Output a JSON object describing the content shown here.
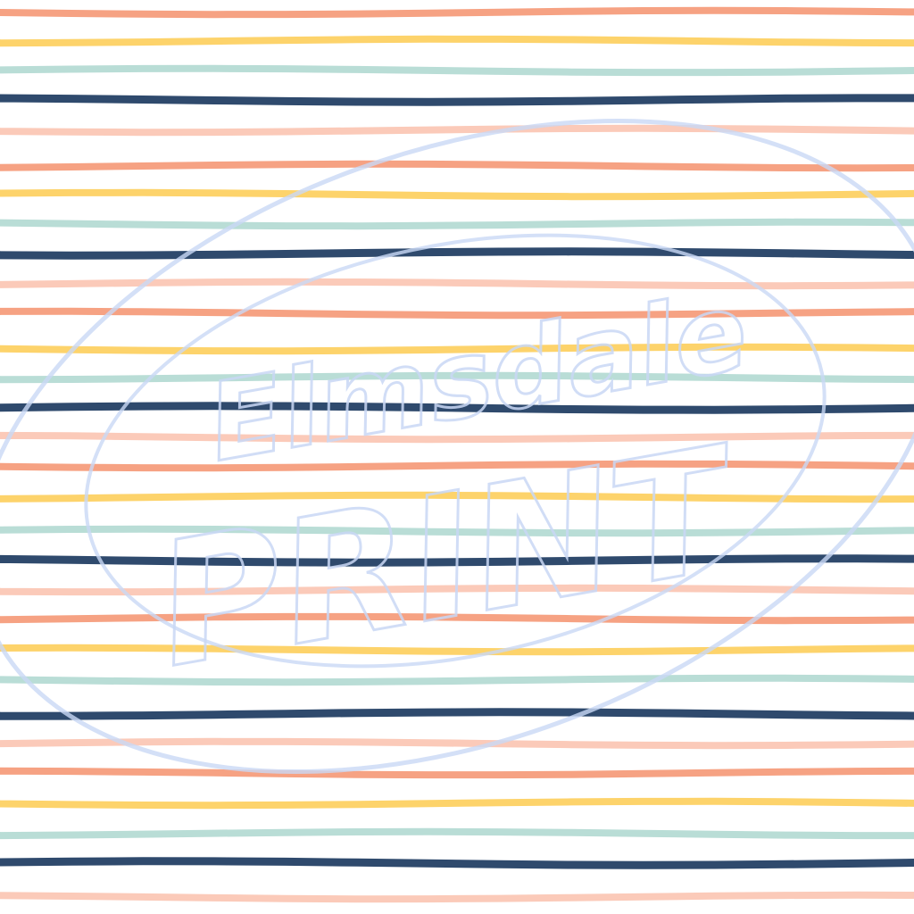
{
  "pattern": {
    "colors": {
      "coral": "#f6a283",
      "yellow": "#fdd36b",
      "mint": "#b9ddd6",
      "navy": "#2f4a6d",
      "pink": "#fbcab9"
    },
    "sequence": [
      "coral",
      "yellow",
      "mint",
      "navy",
      "pink"
    ]
  },
  "watermark": {
    "line1": "Elmsdale",
    "line2": "PRINT",
    "color": "#c9d8f5"
  }
}
